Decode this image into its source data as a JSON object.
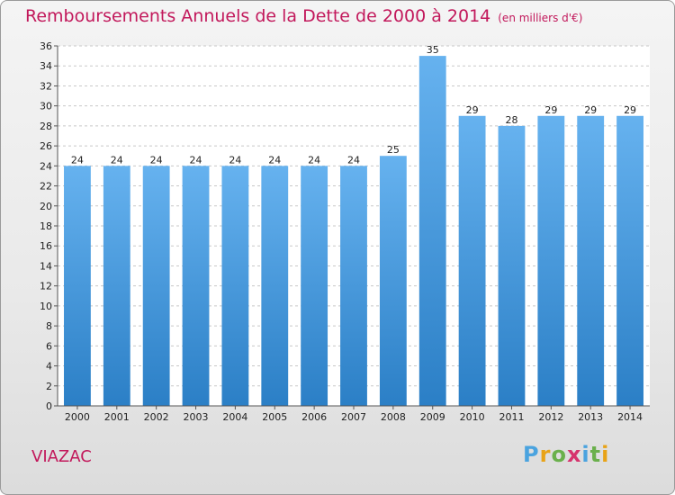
{
  "title": "Remboursements Annuels de la Dette de 2000 à 2014",
  "subtitle": "(en milliers d'€)",
  "place": "VIAZAC",
  "logo": {
    "letters": [
      "P",
      "r",
      "o",
      "x",
      "i",
      "t",
      "i"
    ],
    "colors": [
      "#4aa3df",
      "#e8a317",
      "#6ab04c",
      "#d6336c",
      "#4aa3df",
      "#6ab04c",
      "#e8a317"
    ]
  },
  "colors": {
    "bar_light": "#66b2ef",
    "bar_dark": "#2b7fc6",
    "grid": "#c8c8c8",
    "accent": "#c2185b"
  },
  "chart_data": {
    "type": "bar",
    "title": "Remboursements Annuels de la Dette de 2000 à 2014",
    "subtitle": "(en milliers d'€)",
    "xlabel": "",
    "ylabel": "",
    "categories": [
      "2000",
      "2001",
      "2002",
      "2003",
      "2004",
      "2005",
      "2006",
      "2007",
      "2008",
      "2009",
      "2010",
      "2011",
      "2012",
      "2013",
      "2014"
    ],
    "values": [
      24,
      24,
      24,
      24,
      24,
      24,
      24,
      24,
      25,
      35,
      29,
      28,
      29,
      29,
      29
    ],
    "ylim": [
      0,
      36
    ],
    "yticks": [
      0,
      2,
      4,
      6,
      8,
      10,
      12,
      14,
      16,
      18,
      20,
      22,
      24,
      26,
      28,
      30,
      32,
      34,
      36
    ],
    "grid": true,
    "legend": "none"
  }
}
